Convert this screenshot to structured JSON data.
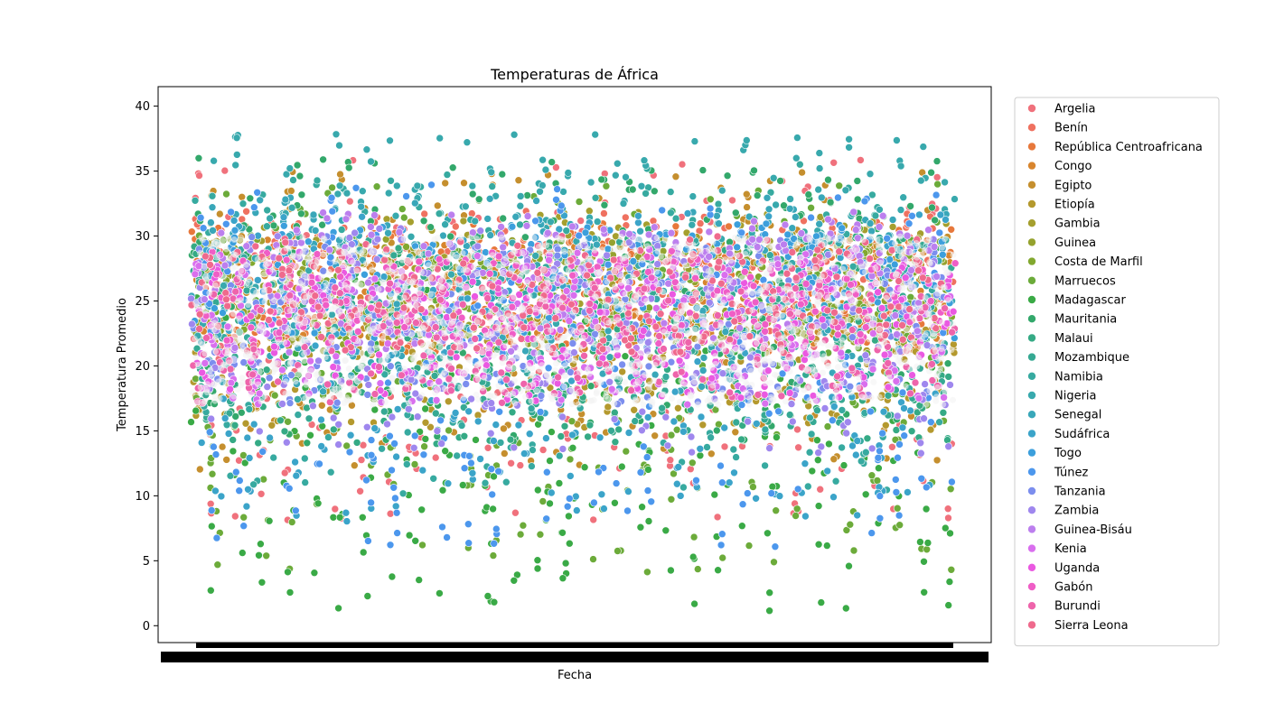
{
  "chart_data": {
    "type": "scatter",
    "title": "Temperaturas de África",
    "xlabel": "Fecha",
    "ylabel": "Temperatura Promedio",
    "ylim": [
      -1.3,
      41.5
    ],
    "yticks": [
      0,
      5,
      10,
      15,
      20,
      25,
      30,
      35,
      40
    ],
    "x_tick_labels_overlapping": true,
    "legend_position": "outside-right",
    "grid": false,
    "series": [
      {
        "name": "Argelia",
        "color": "#f0717c",
        "typical": [
          8,
          36
        ]
      },
      {
        "name": "Benín",
        "color": "#ef7160",
        "typical": [
          22,
          32
        ]
      },
      {
        "name": "República Centroafricana",
        "color": "#e7783b",
        "typical": [
          21,
          31
        ]
      },
      {
        "name": "Congo",
        "color": "#d8852e",
        "typical": [
          21,
          30
        ]
      },
      {
        "name": "Egipto",
        "color": "#c58f2e",
        "typical": [
          12,
          35
        ]
      },
      {
        "name": "Etiopía",
        "color": "#b4992e",
        "typical": [
          15,
          25
        ]
      },
      {
        "name": "Gambia",
        "color": "#a59f2e",
        "typical": [
          22,
          32
        ]
      },
      {
        "name": "Guinea",
        "color": "#95a22e",
        "typical": [
          21,
          30
        ]
      },
      {
        "name": "Costa de Marfil",
        "color": "#82a82f",
        "typical": [
          22,
          30
        ]
      },
      {
        "name": "Marruecos",
        "color": "#6cab3a",
        "typical": [
          4,
          34
        ]
      },
      {
        "name": "Madagascar",
        "color": "#3aaa46",
        "typical": [
          1,
          27
        ]
      },
      {
        "name": "Mauritania",
        "color": "#33a86b",
        "typical": [
          14,
          36
        ]
      },
      {
        "name": "Malaui",
        "color": "#35aa85",
        "typical": [
          14,
          30
        ]
      },
      {
        "name": "Mozambique",
        "color": "#36a993",
        "typical": [
          15,
          30
        ]
      },
      {
        "name": "Namibia",
        "color": "#37aaa0",
        "typical": [
          10,
          36
        ]
      },
      {
        "name": "Nigeria",
        "color": "#38a9ad",
        "typical": [
          20,
          38
        ]
      },
      {
        "name": "Senegal",
        "color": "#39a7b9",
        "typical": [
          18,
          33
        ]
      },
      {
        "name": "Sudáfrica",
        "color": "#3ba4c9",
        "typical": [
          8,
          32
        ]
      },
      {
        "name": "Togo",
        "color": "#3c9fdc",
        "typical": [
          22,
          31
        ]
      },
      {
        "name": "Túnez",
        "color": "#4c97ed",
        "typical": [
          6,
          34
        ]
      },
      {
        "name": "Tanzania",
        "color": "#7c8eee",
        "typical": [
          17,
          30
        ]
      },
      {
        "name": "Zambia",
        "color": "#9f87ee",
        "typical": [
          13,
          31
        ]
      },
      {
        "name": "Guinea-Bisáu",
        "color": "#bc7fee",
        "typical": [
          21,
          32
        ]
      },
      {
        "name": "Kenia",
        "color": "#d96fee",
        "typical": [
          17,
          29
        ]
      },
      {
        "name": "Uganda",
        "color": "#ea59e1",
        "typical": [
          17,
          28
        ]
      },
      {
        "name": "Gabón",
        "color": "#ef5ec6",
        "typical": [
          21,
          29
        ]
      },
      {
        "name": "Burundi",
        "color": "#ee64ab",
        "typical": [
          17,
          27
        ]
      },
      {
        "name": "Sierra Leona",
        "color": "#ef6a8d",
        "typical": [
          21,
          30
        ]
      }
    ]
  }
}
